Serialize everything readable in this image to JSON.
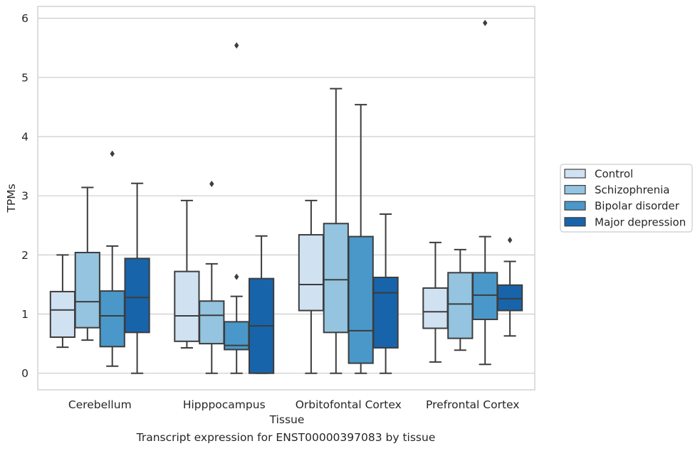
{
  "caption": "Transcript expression for ENST00000397083 by tissue",
  "chart_data": {
    "type": "boxplot",
    "xlabel": "Tissue",
    "ylabel": "TPMs",
    "ylim": [
      -0.28,
      6.2
    ],
    "yticks": [
      0,
      1,
      2,
      3,
      4,
      5,
      6
    ],
    "grid": "horizontal",
    "legend_position": "right",
    "categories": [
      "Cerebellum",
      "Hipppocampus",
      "Orbitofontal Cortex",
      "Prefrontal Cortex"
    ],
    "series": [
      {
        "name": "Control",
        "color": "#d0e1f2",
        "boxes": [
          {
            "whislo": 0.44,
            "q1": 0.61,
            "med": 1.07,
            "q3": 1.38,
            "whishi": 2.0,
            "fliers": []
          },
          {
            "whislo": 0.43,
            "q1": 0.54,
            "med": 0.97,
            "q3": 1.72,
            "whishi": 2.92,
            "fliers": []
          },
          {
            "whislo": 0.0,
            "q1": 1.06,
            "med": 1.5,
            "q3": 2.34,
            "whishi": 2.92,
            "fliers": []
          },
          {
            "whislo": 0.19,
            "q1": 0.76,
            "med": 1.04,
            "q3": 1.44,
            "whishi": 2.21,
            "fliers": []
          }
        ]
      },
      {
        "name": "Schizophrenia",
        "color": "#94c4df",
        "boxes": [
          {
            "whislo": 0.56,
            "q1": 0.77,
            "med": 1.21,
            "q3": 2.04,
            "whishi": 3.14,
            "fliers": []
          },
          {
            "whislo": 0.0,
            "q1": 0.5,
            "med": 0.98,
            "q3": 1.22,
            "whishi": 1.85,
            "fliers": [
              3.2
            ]
          },
          {
            "whislo": 0.0,
            "q1": 0.69,
            "med": 1.58,
            "q3": 2.53,
            "whishi": 4.81,
            "fliers": []
          },
          {
            "whislo": 0.39,
            "q1": 0.59,
            "med": 1.17,
            "q3": 1.7,
            "whishi": 2.09,
            "fliers": []
          }
        ]
      },
      {
        "name": "Bipolar disorder",
        "color": "#4a98c9",
        "boxes": [
          {
            "whislo": 0.12,
            "q1": 0.45,
            "med": 0.97,
            "q3": 1.39,
            "whishi": 2.15,
            "fliers": [
              3.71
            ]
          },
          {
            "whislo": 0.0,
            "q1": 0.4,
            "med": 0.47,
            "q3": 0.87,
            "whishi": 1.3,
            "fliers": [
              1.63,
              5.54
            ]
          },
          {
            "whislo": 0.0,
            "q1": 0.17,
            "med": 0.72,
            "q3": 2.31,
            "whishi": 4.54,
            "fliers": []
          },
          {
            "whislo": 0.15,
            "q1": 0.91,
            "med": 1.32,
            "q3": 1.7,
            "whishi": 2.31,
            "fliers": [
              5.92
            ]
          }
        ]
      },
      {
        "name": "Major depression",
        "color": "#1764ab",
        "boxes": [
          {
            "whislo": 0.0,
            "q1": 0.69,
            "med": 1.28,
            "q3": 1.94,
            "whishi": 3.21,
            "fliers": []
          },
          {
            "whislo": 0.0,
            "q1": 0.0,
            "med": 0.8,
            "q3": 1.6,
            "whishi": 2.32,
            "fliers": []
          },
          {
            "whislo": 0.0,
            "q1": 0.43,
            "med": 1.36,
            "q3": 1.62,
            "whishi": 2.69,
            "fliers": []
          },
          {
            "whislo": 0.63,
            "q1": 1.06,
            "med": 1.26,
            "q3": 1.49,
            "whishi": 1.89,
            "fliers": [
              2.25
            ]
          }
        ]
      }
    ]
  }
}
